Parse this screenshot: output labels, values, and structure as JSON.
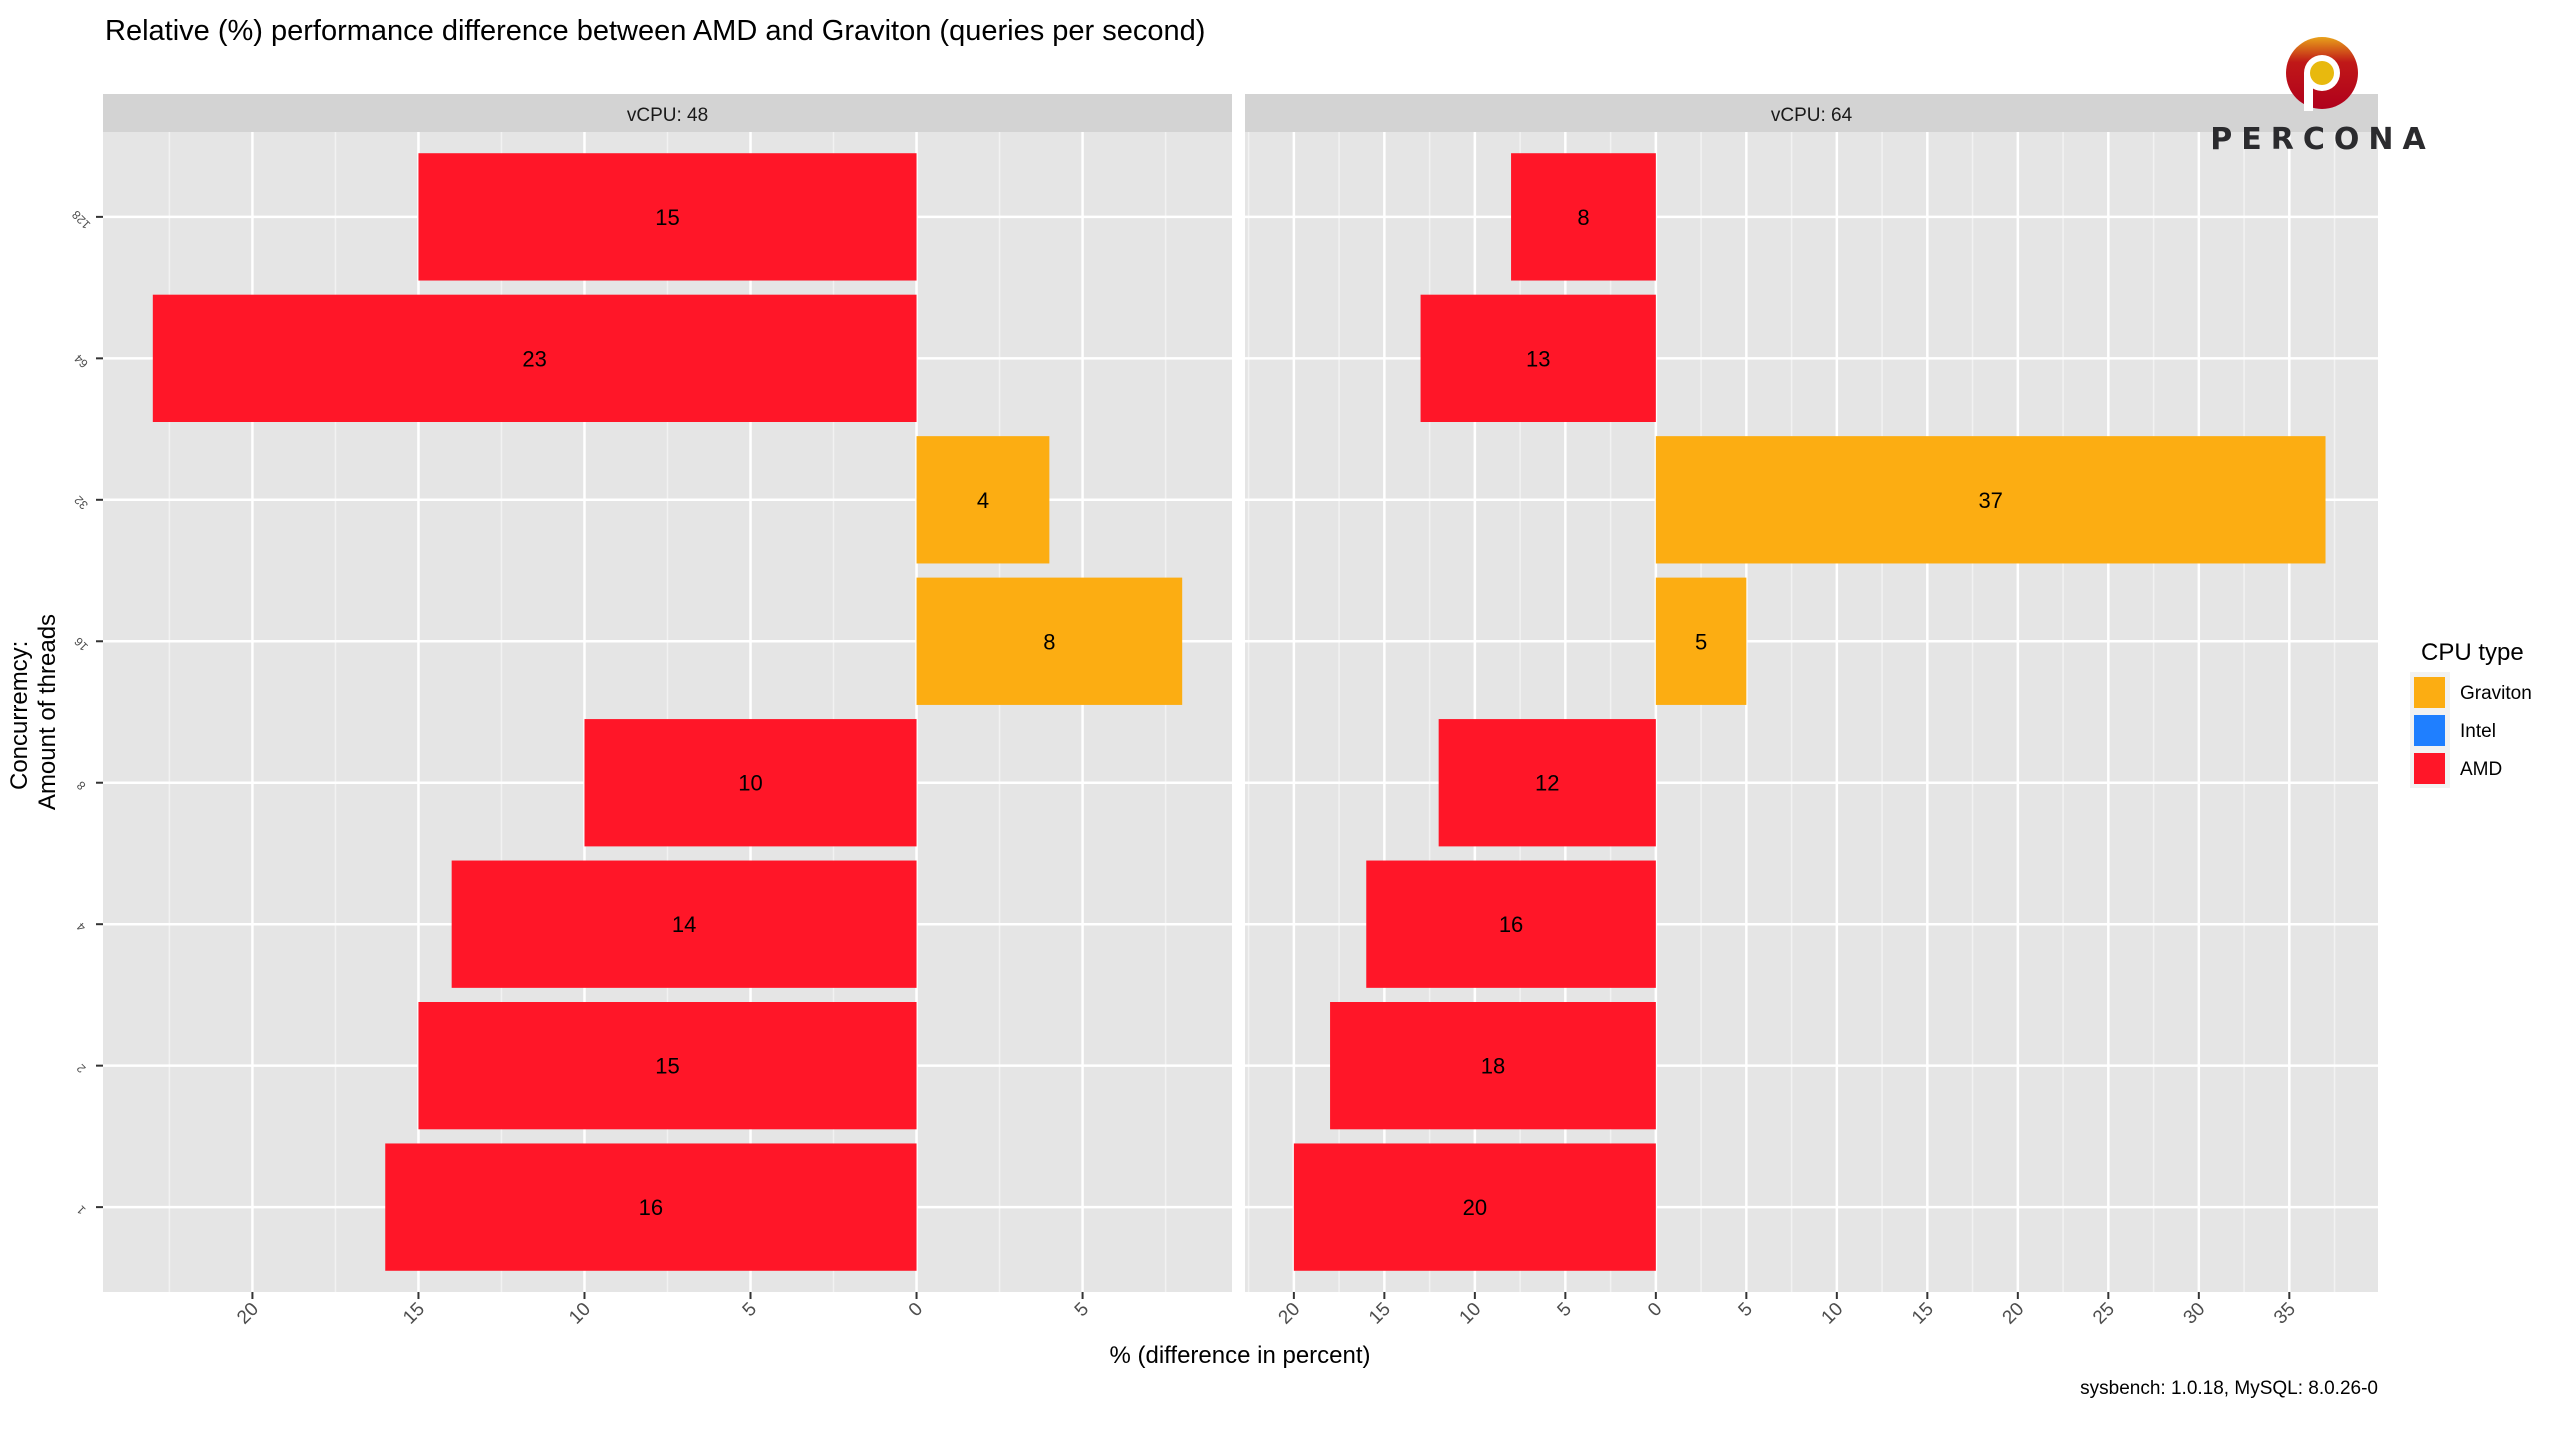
{
  "chart_data": {
    "type": "bar",
    "orientation": "horizontal",
    "title": "Relative (%) performance difference between AMD and Graviton (queries per second)",
    "xlabel": "% (difference in percent)",
    "ylabel": "Concurremcy:\nAmount of threads",
    "ylabel_lines": [
      "Concurremcy:",
      "Amount of threads"
    ],
    "caption": "sysbench: 1.0.18, MySQL: 8.0.26-0",
    "categories": [
      "1",
      "2",
      "4",
      "8",
      "16",
      "32",
      "64",
      "128"
    ],
    "x_tick_labels_note": "absolute values shown on both sides of 0",
    "grid": true,
    "legend": {
      "title": "CPU type",
      "placement": "right",
      "entries": [
        {
          "name": "Graviton",
          "color": "#FCAD12"
        },
        {
          "name": "Intel",
          "color": "#1F7FFF"
        },
        {
          "name": "AMD",
          "color": "#FF1628"
        }
      ]
    },
    "panels": [
      {
        "strip": "vCPU: 48",
        "xlim": [
          -24.5,
          9.5
        ],
        "x_ticks": [
          -20,
          -15,
          -10,
          -5,
          0,
          5
        ],
        "x_tick_labels": [
          "20",
          "15",
          "10",
          "5",
          "0",
          "5"
        ],
        "bars": [
          {
            "threads": "1",
            "winner": "AMD",
            "value": -16,
            "label": "16"
          },
          {
            "threads": "2",
            "winner": "AMD",
            "value": -15,
            "label": "15"
          },
          {
            "threads": "4",
            "winner": "AMD",
            "value": -14,
            "label": "14"
          },
          {
            "threads": "8",
            "winner": "AMD",
            "value": -10,
            "label": "10"
          },
          {
            "threads": "16",
            "winner": "Graviton",
            "value": 8,
            "label": "8"
          },
          {
            "threads": "32",
            "winner": "Graviton",
            "value": 4,
            "label": "4"
          },
          {
            "threads": "64",
            "winner": "AMD",
            "value": -23,
            "label": "23"
          },
          {
            "threads": "128",
            "winner": "AMD",
            "value": -15,
            "label": "15"
          }
        ]
      },
      {
        "strip": "vCPU: 64",
        "xlim": [
          -22.7,
          39.9
        ],
        "x_ticks": [
          -20,
          -15,
          -10,
          -5,
          0,
          5,
          10,
          15,
          20,
          25,
          30,
          35
        ],
        "x_tick_labels": [
          "20",
          "15",
          "10",
          "5",
          "0",
          "5",
          "10",
          "15",
          "20",
          "25",
          "30",
          "35"
        ],
        "bars": [
          {
            "threads": "1",
            "winner": "AMD",
            "value": -20,
            "label": "20"
          },
          {
            "threads": "2",
            "winner": "AMD",
            "value": -18,
            "label": "18"
          },
          {
            "threads": "4",
            "winner": "AMD",
            "value": -16,
            "label": "16"
          },
          {
            "threads": "8",
            "winner": "AMD",
            "value": -12,
            "label": "12"
          },
          {
            "threads": "16",
            "winner": "Graviton",
            "value": 5,
            "label": "5"
          },
          {
            "threads": "32",
            "winner": "Graviton",
            "value": 37,
            "label": "37"
          },
          {
            "threads": "64",
            "winner": "AMD",
            "value": -13,
            "label": "13"
          },
          {
            "threads": "128",
            "winner": "AMD",
            "value": -8,
            "label": "8"
          }
        ]
      }
    ]
  },
  "logo": {
    "icon": "percona-logo-icon",
    "text": "PERCONA"
  }
}
